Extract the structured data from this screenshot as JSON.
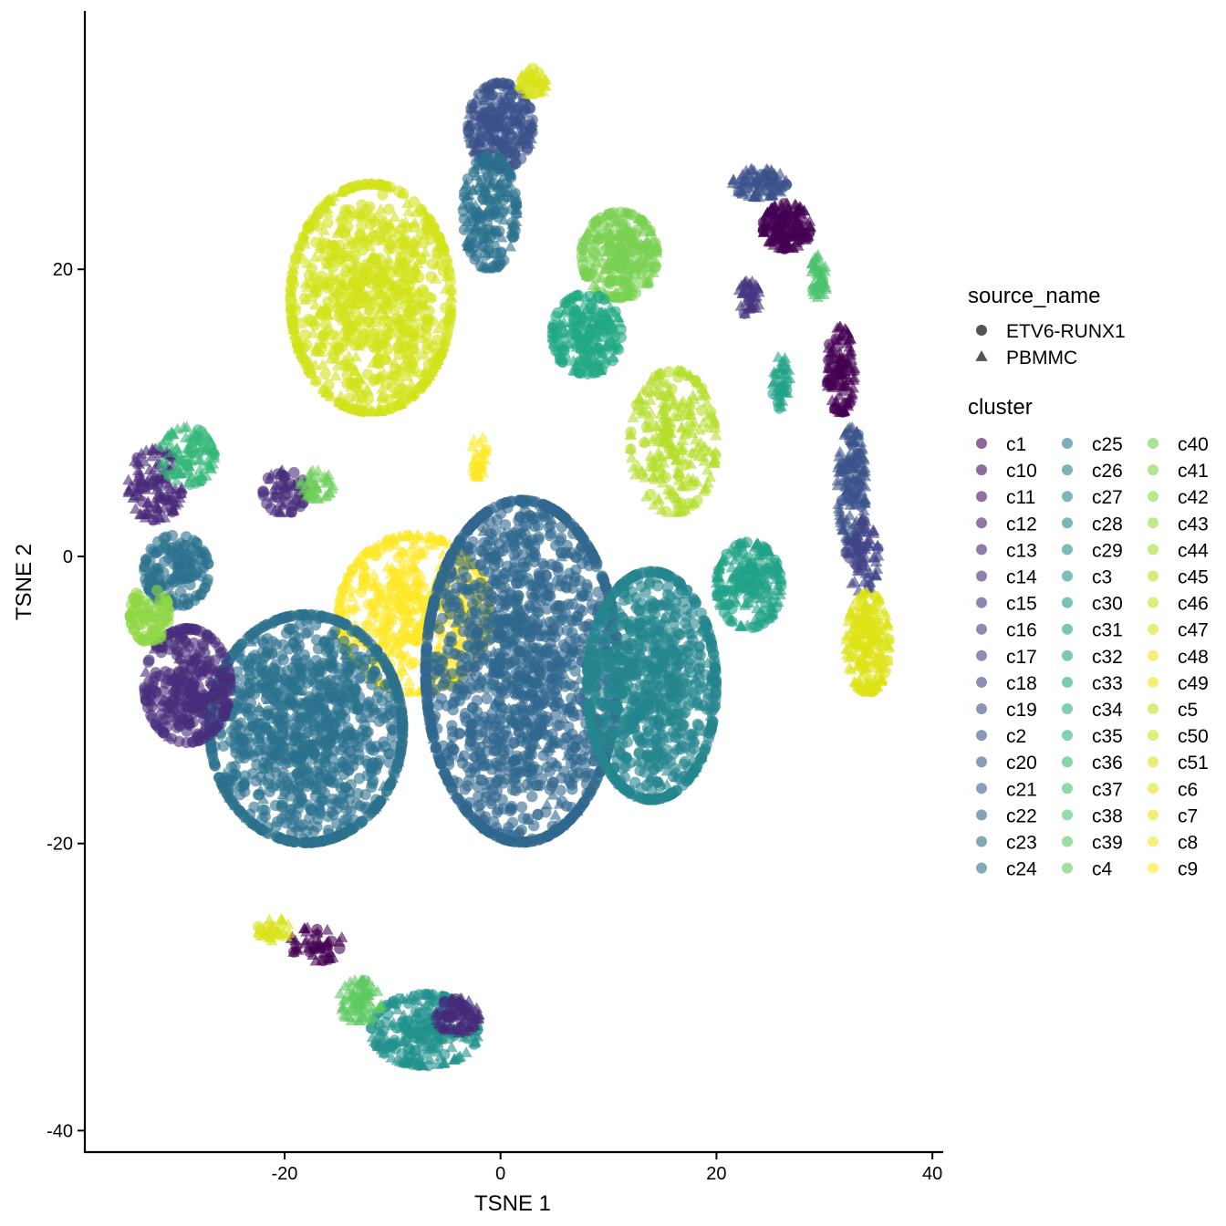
{
  "chart_data": {
    "type": "scatter",
    "xlabel": "TSNE 1",
    "ylabel": "TSNE 2",
    "xlim": [
      -38.5,
      41
    ],
    "ylim": [
      -41.5,
      38
    ],
    "x_ticks": [
      -20,
      0,
      20,
      40
    ],
    "y_ticks": [
      -40,
      -20,
      0,
      20
    ],
    "x_tick_labels": [
      "-20",
      "0",
      "20",
      "40"
    ],
    "y_tick_labels": [
      "-40",
      "-20",
      "0",
      "20"
    ],
    "grid": false,
    "point_alpha": 0.6,
    "shape_legend": {
      "title": "source_name",
      "entries": [
        {
          "label": "ETV6-RUNX1",
          "shape": "circle"
        },
        {
          "label": "PBMMC",
          "shape": "triangle"
        }
      ]
    },
    "color_legend": {
      "title": "cluster",
      "placement": "right",
      "entries": [
        {
          "label": "c1",
          "color": "#440154"
        },
        {
          "label": "c10",
          "color": "#450a5c"
        },
        {
          "label": "c11",
          "color": "#471365"
        },
        {
          "label": "c12",
          "color": "#481b6d"
        },
        {
          "label": "c13",
          "color": "#482374"
        },
        {
          "label": "c14",
          "color": "#472b7a"
        },
        {
          "label": "c15",
          "color": "#46337f"
        },
        {
          "label": "c16",
          "color": "#443a83"
        },
        {
          "label": "c17",
          "color": "#424186"
        },
        {
          "label": "c18",
          "color": "#3f4889"
        },
        {
          "label": "c19",
          "color": "#3c4f8a"
        },
        {
          "label": "c2",
          "color": "#39558c"
        },
        {
          "label": "c20",
          "color": "#365c8d"
        },
        {
          "label": "c21",
          "color": "#33628d"
        },
        {
          "label": "c22",
          "color": "#31688e"
        },
        {
          "label": "c23",
          "color": "#2e6d8e"
        },
        {
          "label": "c24",
          "color": "#2c738e"
        },
        {
          "label": "c25",
          "color": "#2a788e"
        },
        {
          "label": "c26",
          "color": "#287e8e"
        },
        {
          "label": "c27",
          "color": "#26838e"
        },
        {
          "label": "c28",
          "color": "#24898e"
        },
        {
          "label": "c29",
          "color": "#228e8d"
        },
        {
          "label": "c3",
          "color": "#21948c"
        },
        {
          "label": "c30",
          "color": "#1f9a8a"
        },
        {
          "label": "c31",
          "color": "#1fa088"
        },
        {
          "label": "c32",
          "color": "#20a586"
        },
        {
          "label": "c33",
          "color": "#22ab82"
        },
        {
          "label": "c34",
          "color": "#26b07f"
        },
        {
          "label": "c35",
          "color": "#2db67a"
        },
        {
          "label": "c36",
          "color": "#35bb75"
        },
        {
          "label": "c37",
          "color": "#3fbf70"
        },
        {
          "label": "c38",
          "color": "#4ac46a"
        },
        {
          "label": "c39",
          "color": "#56c864"
        },
        {
          "label": "c4",
          "color": "#63cc5d"
        },
        {
          "label": "c40",
          "color": "#70d055"
        },
        {
          "label": "c41",
          "color": "#7ed34d"
        },
        {
          "label": "c42",
          "color": "#8cd646"
        },
        {
          "label": "c43",
          "color": "#9bd93c"
        },
        {
          "label": "c44",
          "color": "#aadc32"
        },
        {
          "label": "c45",
          "color": "#b9de2a"
        },
        {
          "label": "c46",
          "color": "#c8e020"
        },
        {
          "label": "c47",
          "color": "#d8e219"
        },
        {
          "label": "c48",
          "color": "#e7e419"
        },
        {
          "label": "c49",
          "color": "#f2e51d"
        },
        {
          "label": "c5",
          "color": "#bddf26"
        },
        {
          "label": "c50",
          "color": "#cde11d"
        },
        {
          "label": "c51",
          "color": "#dde318"
        },
        {
          "label": "c6",
          "color": "#e2e418"
        },
        {
          "label": "c7",
          "color": "#ece51b"
        },
        {
          "label": "c8",
          "color": "#f6e620"
        },
        {
          "label": "c9",
          "color": "#fde725"
        }
      ]
    },
    "clusters": [
      {
        "cx": -12,
        "cy": 18,
        "rx": 7.5,
        "ry": 8,
        "color": "#d2e21b",
        "n": 900,
        "shape": "mix"
      },
      {
        "cx": 0,
        "cy": 30,
        "rx": 3,
        "ry": 3,
        "color": "#3b528b",
        "n": 250,
        "shape": "mix"
      },
      {
        "cx": -1,
        "cy": 24,
        "rx": 2.5,
        "ry": 4,
        "color": "#2c728e",
        "n": 200,
        "shape": "mix"
      },
      {
        "cx": 3,
        "cy": 33,
        "rx": 1.2,
        "ry": 1,
        "color": "#d8e219",
        "n": 40,
        "shape": "triangle"
      },
      {
        "cx": 11,
        "cy": 21,
        "rx": 3.5,
        "ry": 3,
        "color": "#7ad151",
        "n": 250,
        "shape": "mix"
      },
      {
        "cx": 8,
        "cy": 15.5,
        "rx": 3.2,
        "ry": 2.8,
        "color": "#22a884",
        "n": 220,
        "shape": "mix"
      },
      {
        "cx": 16,
        "cy": 8,
        "rx": 4,
        "ry": 5,
        "color": "#b5de2b",
        "n": 250,
        "shape": "triangle"
      },
      {
        "cx": -8,
        "cy": -4,
        "rx": 7,
        "ry": 5.5,
        "color": "#fde725",
        "n": 500,
        "shape": "mix"
      },
      {
        "cx": -18,
        "cy": -12,
        "rx": 9,
        "ry": 8,
        "color": "#2c728e",
        "n": 1200,
        "shape": "circle"
      },
      {
        "cx": 2,
        "cy": -8,
        "rx": 9,
        "ry": 12,
        "color": "#31688e",
        "n": 1600,
        "shape": "circle"
      },
      {
        "cx": 14,
        "cy": -9,
        "rx": 6,
        "ry": 8,
        "color": "#25858e",
        "n": 900,
        "shape": "circle"
      },
      {
        "cx": 23,
        "cy": -2,
        "rx": 3,
        "ry": 3,
        "color": "#1fa187",
        "n": 200,
        "shape": "mix"
      },
      {
        "cx": -29,
        "cy": -9,
        "rx": 4,
        "ry": 4,
        "color": "#472d7b",
        "n": 300,
        "shape": "circle"
      },
      {
        "cx": -30,
        "cy": -1,
        "rx": 3,
        "ry": 2.5,
        "color": "#2c728e",
        "n": 150,
        "shape": "circle"
      },
      {
        "cx": -32.5,
        "cy": -4,
        "rx": 1.8,
        "ry": 2,
        "color": "#8fd744",
        "n": 80,
        "shape": "circle"
      },
      {
        "cx": -32,
        "cy": 5,
        "rx": 2.5,
        "ry": 2.5,
        "color": "#482878",
        "n": 120,
        "shape": "triangle"
      },
      {
        "cx": -29,
        "cy": 7,
        "rx": 2.5,
        "ry": 2,
        "color": "#35b779",
        "n": 100,
        "shape": "triangle"
      },
      {
        "cx": -20,
        "cy": 4.5,
        "rx": 2,
        "ry": 1.5,
        "color": "#472d7b",
        "n": 60,
        "shape": "mix"
      },
      {
        "cx": -17,
        "cy": 5,
        "rx": 1.5,
        "ry": 1,
        "color": "#6ece58",
        "n": 40,
        "shape": "triangle"
      },
      {
        "cx": -7,
        "cy": -33,
        "rx": 5,
        "ry": 2.5,
        "color": "#21918c",
        "n": 250,
        "shape": "mix"
      },
      {
        "cx": -13,
        "cy": -31,
        "rx": 2,
        "ry": 1.5,
        "color": "#5ec962",
        "n": 80,
        "shape": "triangle"
      },
      {
        "cx": -4,
        "cy": -32,
        "rx": 2,
        "ry": 1.2,
        "color": "#482878",
        "n": 70,
        "shape": "triangle"
      },
      {
        "cx": -17,
        "cy": -27,
        "rx": 2.5,
        "ry": 1.2,
        "color": "#440154",
        "n": 50,
        "shape": "triangle"
      },
      {
        "cx": -21,
        "cy": -26,
        "rx": 1.5,
        "ry": 0.8,
        "color": "#d8e219",
        "n": 30,
        "shape": "triangle"
      },
      {
        "cx": 26.5,
        "cy": 23,
        "rx": 2.2,
        "ry": 1.6,
        "color": "#440154",
        "n": 160,
        "shape": "triangle"
      },
      {
        "cx": 24,
        "cy": 26,
        "rx": 2.5,
        "ry": 1,
        "color": "#3b528b",
        "n": 90,
        "shape": "triangle"
      },
      {
        "cx": 31.5,
        "cy": 13,
        "rx": 1.3,
        "ry": 3,
        "color": "#440154",
        "n": 120,
        "shape": "triangle"
      },
      {
        "cx": 32.5,
        "cy": 5,
        "rx": 1.3,
        "ry": 4,
        "color": "#3b528b",
        "n": 140,
        "shape": "triangle"
      },
      {
        "cx": 33.5,
        "cy": 0,
        "rx": 1.5,
        "ry": 2.5,
        "color": "#414487",
        "n": 80,
        "shape": "triangle"
      },
      {
        "cx": 34,
        "cy": -6,
        "rx": 2,
        "ry": 3.5,
        "color": "#dde318",
        "n": 200,
        "shape": "triangle"
      },
      {
        "cx": 29.5,
        "cy": 19.5,
        "rx": 0.8,
        "ry": 1.5,
        "color": "#4ac16d",
        "n": 40,
        "shape": "triangle"
      },
      {
        "cx": 23,
        "cy": 18,
        "rx": 1,
        "ry": 1.2,
        "color": "#46337e",
        "n": 40,
        "shape": "triangle"
      },
      {
        "cx": 26,
        "cy": 12,
        "rx": 0.8,
        "ry": 2,
        "color": "#1fa187",
        "n": 40,
        "shape": "triangle"
      },
      {
        "cx": -2,
        "cy": 7,
        "rx": 0.7,
        "ry": 1.5,
        "color": "#fde725",
        "n": 30,
        "shape": "triangle"
      }
    ]
  }
}
